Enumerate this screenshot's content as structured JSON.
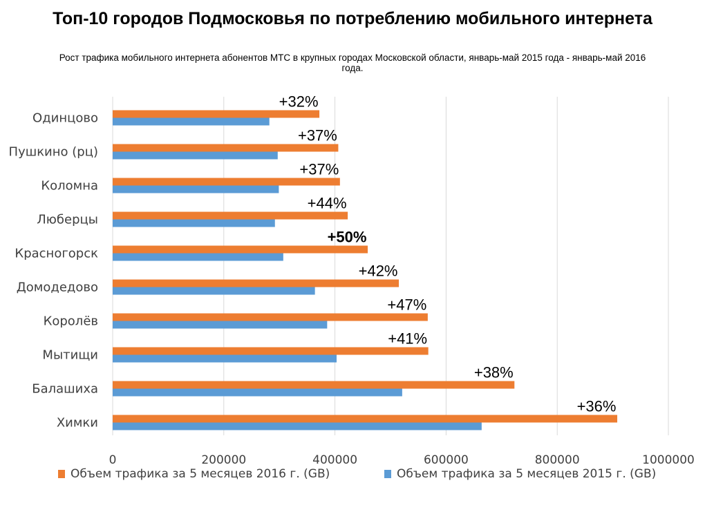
{
  "chart_data": {
    "type": "bar",
    "orientation": "horizontal",
    "title": "Топ-10 городов Подмосковья по потреблению мобильного интернета",
    "subtitle": "Рост трафика мобильного интернета абонентов МТС в крупных городах Московской области, январь-май 2015 года - январь-май 2016 года.",
    "categories": [
      "Одинцово",
      "Пушкино (рц)",
      "Коломна",
      "Люберцы",
      "Красногорск",
      "Домодедово",
      "Королёв",
      "Мытищи",
      "Балашиха",
      "Химки"
    ],
    "series": [
      {
        "name": "Объем трафика за 5 месяцев 2016 г. (GB)",
        "color": "#ED7D31",
        "values": [
          372000,
          406000,
          409000,
          423000,
          459000,
          515000,
          567000,
          568000,
          723000,
          908000
        ]
      },
      {
        "name": "Объем трафика за 5 месяцев 2015 г. (GB)",
        "color": "#5B9BD5",
        "values": [
          282000,
          297000,
          299000,
          292000,
          307000,
          364000,
          386000,
          403000,
          521000,
          664000
        ]
      }
    ],
    "growth_labels": [
      "+32%",
      "+37%",
      "+37%",
      "+44%",
      "+50%",
      "+42%",
      "+47%",
      "+41%",
      "+38%",
      "+36%"
    ],
    "highlight_label_index": 4,
    "highlight_color": "#E01010",
    "xlim": [
      0,
      1000000
    ],
    "xticks": [
      0,
      200000,
      400000,
      600000,
      800000,
      1000000
    ],
    "xtick_labels": [
      "0",
      "200000",
      "400000",
      "600000",
      "800000",
      "1000000"
    ],
    "xlabel": "",
    "ylabel": "",
    "grid": true,
    "legend_position": "bottom"
  }
}
